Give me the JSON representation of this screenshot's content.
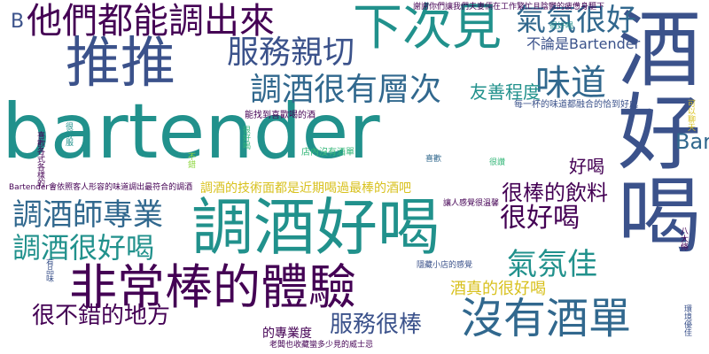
{
  "cloud": {
    "colors": {
      "purple": "#440154",
      "indigo": "#3b528b",
      "blue": "#31688e",
      "teal": "#21918c",
      "green": "#35b779",
      "lime": "#90d743",
      "yellow": "#d8c11e"
    },
    "words": [
      "bartender",
      "酒好喝",
      "推推",
      "調酒好喝",
      "非常棒的體驗",
      "下次見",
      "他們都能調出來",
      "沒有酒單",
      "調酒很有層次",
      "氣氛很好",
      "服務親切",
      "味道",
      "調酒師專業",
      "調酒很好喝",
      "很棒的飲料",
      "很好喝",
      "氣氛佳",
      "服務很棒",
      "很不錯的地方",
      "酒真的很好喝",
      "不論是Bartender",
      "友善程度",
      "Bar",
      "好喝",
      "調酒的技術面都是近期喝過最棒的酒吧",
      "Bartender會依照客人形容的味道調出最符合的調酒",
      "的專業度",
      "B",
      "每一杯的味道都融合的恰到好處",
      "能找到喜歡喝的酒",
      "店內沒有酒單",
      "謝謝你們讓我們夫妻倆在工作繁忙且陰鬱的疲憊身驅下",
      "很舒服",
      "很好喝",
      "環境優佳",
      "老闆也收藏蠻多少見的威士忌",
      "喜歡",
      "八大條",
      "很好喝",
      "隱藏小店的感覺",
      "喜歡各式各樣的",
      "可以聊天",
      "有品味",
      "讓人感覺很溫馨",
      "不錯",
      "很讚"
    ]
  }
}
